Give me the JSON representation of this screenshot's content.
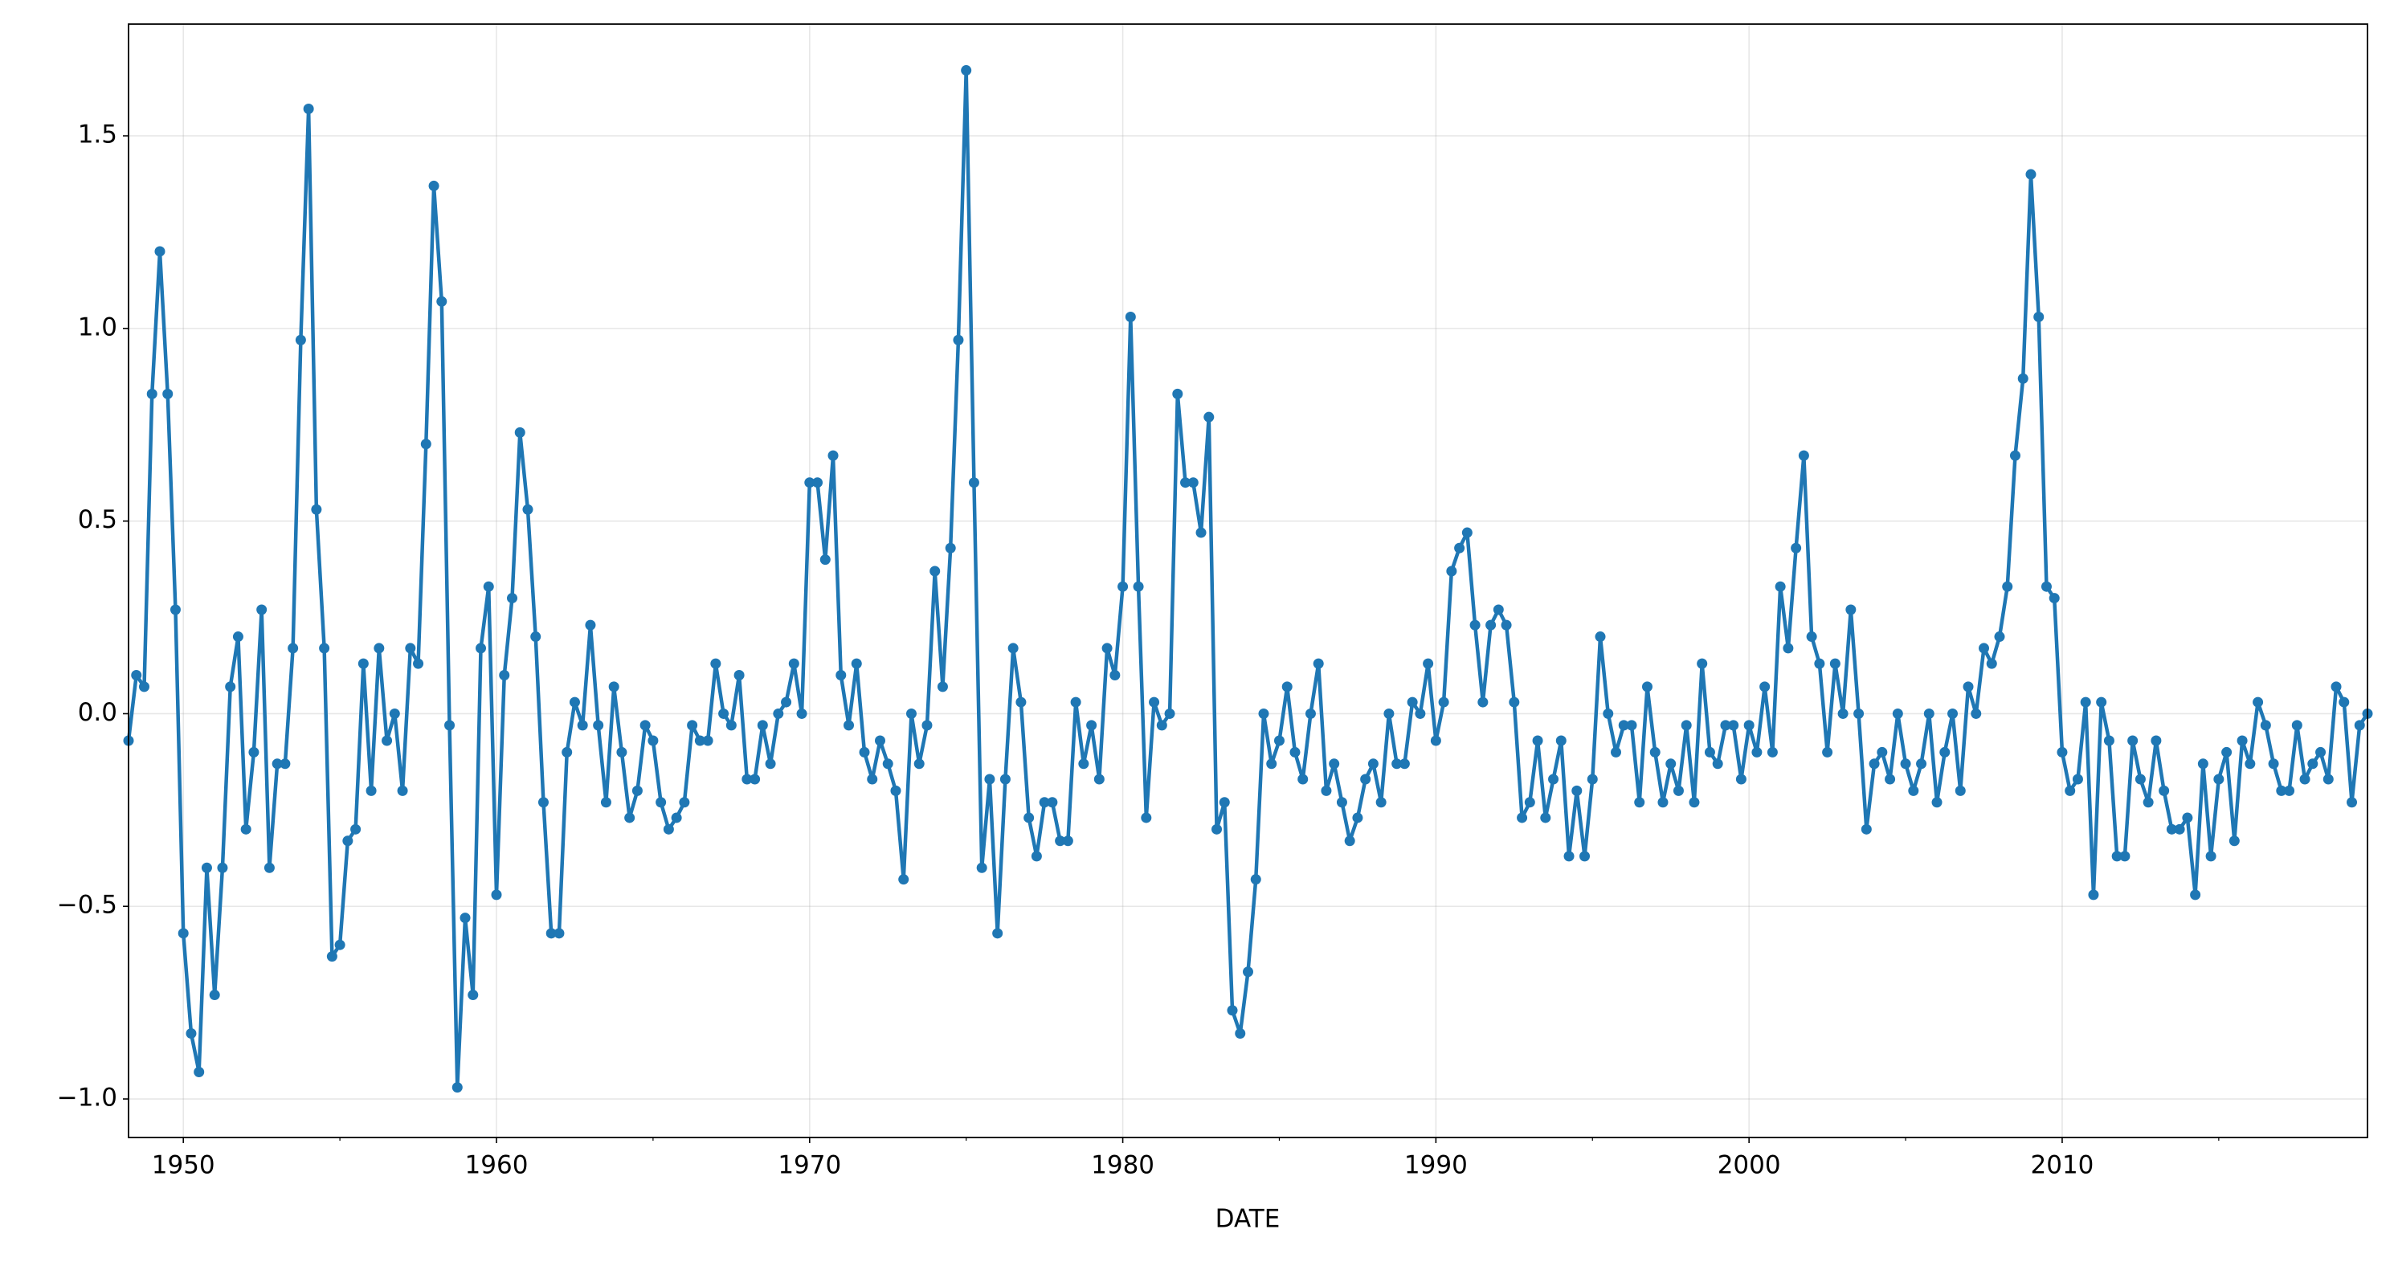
{
  "chart_data": {
    "type": "line",
    "x_label": "DATE",
    "color": "#1f77b4",
    "grid": true,
    "xlim": [
      1948.25,
      2019.75
    ],
    "xticks": [
      1950,
      1960,
      1970,
      1980,
      1990,
      2000,
      2010
    ],
    "xminorticks": [
      1955,
      1965,
      1975,
      1985,
      1995,
      2005,
      2015
    ],
    "ylim": [
      -1.1,
      1.79
    ],
    "yticks": [
      {
        "value": -1.0,
        "label": "−1.0"
      },
      {
        "value": -0.5,
        "label": "−0.5"
      },
      {
        "value": 0.0,
        "label": "0.0"
      },
      {
        "value": 0.5,
        "label": "0.5"
      },
      {
        "value": 1.0,
        "label": "1.0"
      },
      {
        "value": 1.5,
        "label": "1.5"
      }
    ],
    "x": [
      1948.25,
      1948.5,
      1948.75,
      1949,
      1949.25,
      1949.5,
      1949.75,
      1950,
      1950.25,
      1950.5,
      1950.75,
      1951,
      1951.25,
      1951.5,
      1951.75,
      1952,
      1952.25,
      1952.5,
      1952.75,
      1953,
      1953.25,
      1953.5,
      1953.75,
      1954,
      1954.25,
      1954.5,
      1954.75,
      1955,
      1955.25,
      1955.5,
      1955.75,
      1956,
      1956.25,
      1956.5,
      1956.75,
      1957,
      1957.25,
      1957.5,
      1957.75,
      1958,
      1958.25,
      1958.5,
      1958.75,
      1959,
      1959.25,
      1959.5,
      1959.75,
      1960,
      1960.25,
      1960.5,
      1960.75,
      1961,
      1961.25,
      1961.5,
      1961.75,
      1962,
      1962.25,
      1962.5,
      1962.75,
      1963,
      1963.25,
      1963.5,
      1963.75,
      1964,
      1964.25,
      1964.5,
      1964.75,
      1965,
      1965.25,
      1965.5,
      1965.75,
      1966,
      1966.25,
      1966.5,
      1966.75,
      1967,
      1967.25,
      1967.5,
      1967.75,
      1968,
      1968.25,
      1968.5,
      1968.75,
      1969,
      1969.25,
      1969.5,
      1969.75,
      1970,
      1970.25,
      1970.5,
      1970.75,
      1971,
      1971.25,
      1971.5,
      1971.75,
      1972,
      1972.25,
      1972.5,
      1972.75,
      1973,
      1973.25,
      1973.5,
      1973.75,
      1974,
      1974.25,
      1974.5,
      1974.75,
      1975,
      1975.25,
      1975.5,
      1975.75,
      1976,
      1976.25,
      1976.5,
      1976.75,
      1977,
      1977.25,
      1977.5,
      1977.75,
      1978,
      1978.25,
      1978.5,
      1978.75,
      1979,
      1979.25,
      1979.5,
      1979.75,
      1980,
      1980.25,
      1980.5,
      1980.75,
      1981,
      1981.25,
      1981.5,
      1981.75,
      1982,
      1982.25,
      1982.5,
      1982.75,
      1983,
      1983.25,
      1983.5,
      1983.75,
      1984,
      1984.25,
      1984.5,
      1984.75,
      1985,
      1985.25,
      1985.5,
      1985.75,
      1986,
      1986.25,
      1986.5,
      1986.75,
      1987,
      1987.25,
      1987.5,
      1987.75,
      1988,
      1988.25,
      1988.5,
      1988.75,
      1989,
      1989.25,
      1989.5,
      1989.75,
      1990,
      1990.25,
      1990.5,
      1990.75,
      1991,
      1991.25,
      1991.5,
      1991.75,
      1992,
      1992.25,
      1992.5,
      1992.75,
      1993,
      1993.25,
      1993.5,
      1993.75,
      1994,
      1994.25,
      1994.5,
      1994.75,
      1995,
      1995.25,
      1995.5,
      1995.75,
      1996,
      1996.25,
      1996.5,
      1996.75,
      1997,
      1997.25,
      1997.5,
      1997.75,
      1998,
      1998.25,
      1998.5,
      1998.75,
      1999,
      1999.25,
      1999.5,
      1999.75,
      2000,
      2000.25,
      2000.5,
      2000.75,
      2001,
      2001.25,
      2001.5,
      2001.75,
      2002,
      2002.25,
      2002.5,
      2002.75,
      2003,
      2003.25,
      2003.5,
      2003.75,
      2004,
      2004.25,
      2004.5,
      2004.75,
      2005,
      2005.25,
      2005.5,
      2005.75,
      2006,
      2006.25,
      2006.5,
      2006.75,
      2007,
      2007.25,
      2007.5,
      2007.75,
      2008,
      2008.25,
      2008.5,
      2008.75,
      2009,
      2009.25,
      2009.5,
      2009.75,
      2010,
      2010.25,
      2010.5,
      2010.75,
      2011,
      2011.25,
      2011.5,
      2011.75,
      2012,
      2012.25,
      2012.5,
      2012.75,
      2013,
      2013.25,
      2013.5,
      2013.75,
      2014,
      2014.25,
      2014.5,
      2014.75,
      2015,
      2015.25,
      2015.5,
      2015.75,
      2016,
      2016.25,
      2016.5,
      2016.75,
      2017,
      2017.25,
      2017.5,
      2017.75,
      2018,
      2018.25,
      2018.5,
      2018.75,
      2019,
      2019.25,
      2019.5,
      2019.75
    ],
    "values": [
      -0.07,
      0.1,
      0.07,
      0.83,
      1.2,
      0.83,
      0.27,
      -0.57,
      -0.83,
      -0.93,
      -0.4,
      -0.73,
      -0.4,
      0.07,
      0.2,
      -0.3,
      -0.1,
      0.27,
      -0.4,
      -0.13,
      -0.13,
      0.17,
      0.97,
      1.57,
      0.53,
      0.17,
      -0.63,
      -0.6,
      -0.33,
      -0.3,
      0.13,
      -0.2,
      0.17,
      -0.07,
      0,
      -0.2,
      0.17,
      0.13,
      0.7,
      1.37,
      1.07,
      -0.03,
      -0.97,
      -0.53,
      -0.73,
      0.17,
      0.33,
      -0.47,
      0.1,
      0.3,
      0.73,
      0.53,
      0.2,
      -0.23,
      -0.57,
      -0.57,
      -0.1,
      0.03,
      -0.03,
      0.23,
      -0.03,
      -0.23,
      0.07,
      -0.1,
      -0.27,
      -0.2,
      -0.03,
      -0.07,
      -0.23,
      -0.3,
      -0.27,
      -0.23,
      -0.03,
      -0.07,
      -0.07,
      0.13,
      0,
      -0.03,
      0.1,
      -0.17,
      -0.17,
      -0.03,
      -0.13,
      0,
      0.03,
      0.13,
      0,
      0.6,
      0.6,
      0.4,
      0.67,
      0.1,
      -0.03,
      0.13,
      -0.1,
      -0.17,
      -0.07,
      -0.13,
      -0.2,
      -0.43,
      0,
      -0.13,
      -0.03,
      0.37,
      0.07,
      0.43,
      0.97,
      1.67,
      0.6,
      -0.4,
      -0.17,
      -0.57,
      -0.17,
      0.17,
      0.03,
      -0.27,
      -0.37,
      -0.23,
      -0.23,
      -0.33,
      -0.33,
      0.03,
      -0.13,
      -0.03,
      -0.17,
      0.17,
      0.1,
      0.33,
      1.03,
      0.33,
      -0.27,
      0.03,
      -0.03,
      0,
      0.83,
      0.6,
      0.6,
      0.47,
      0.77,
      -0.3,
      -0.23,
      -0.77,
      -0.83,
      -0.67,
      -0.43,
      0,
      -0.13,
      -0.07,
      0.07,
      -0.1,
      -0.17,
      0,
      0.13,
      -0.2,
      -0.13,
      -0.23,
      -0.33,
      -0.27,
      -0.17,
      -0.13,
      -0.23,
      0,
      -0.13,
      -0.13,
      0.03,
      0,
      0.13,
      -0.07,
      0.03,
      0.37,
      0.43,
      0.47,
      0.23,
      0.03,
      0.23,
      0.27,
      0.23,
      0.03,
      -0.27,
      -0.23,
      -0.07,
      -0.27,
      -0.17,
      -0.07,
      -0.37,
      -0.2,
      -0.37,
      -0.17,
      0.2,
      0,
      -0.1,
      -0.03,
      -0.03,
      -0.23,
      0.07,
      -0.1,
      -0.23,
      -0.13,
      -0.2,
      -0.03,
      -0.23,
      0.13,
      -0.1,
      -0.13,
      -0.03,
      -0.03,
      -0.17,
      -0.03,
      -0.1,
      0.07,
      -0.1,
      0.33,
      0.17,
      0.43,
      0.67,
      0.2,
      0.13,
      -0.1,
      0.13,
      0,
      0.27,
      0,
      -0.3,
      -0.13,
      -0.1,
      -0.17,
      0,
      -0.13,
      -0.2,
      -0.13,
      0,
      -0.23,
      -0.1,
      0,
      -0.2,
      0.07,
      0,
      0.17,
      0.13,
      0.2,
      0.33,
      0.67,
      0.87,
      1.4,
      1.03,
      0.33,
      0.3,
      -0.1,
      -0.2,
      -0.17,
      0.03,
      -0.47,
      0.03,
      -0.07,
      -0.37,
      -0.37,
      -0.07,
      -0.17,
      -0.23,
      -0.07,
      -0.2,
      -0.3,
      -0.3,
      -0.27,
      -0.47,
      -0.13,
      -0.37,
      -0.17,
      -0.1,
      -0.33,
      -0.07,
      -0.13,
      0.03,
      -0.03,
      -0.13,
      -0.2,
      -0.2,
      -0.03,
      -0.17,
      -0.13,
      -0.1,
      -0.17,
      0.07,
      0.03,
      -0.23,
      -0.03,
      0
    ]
  }
}
